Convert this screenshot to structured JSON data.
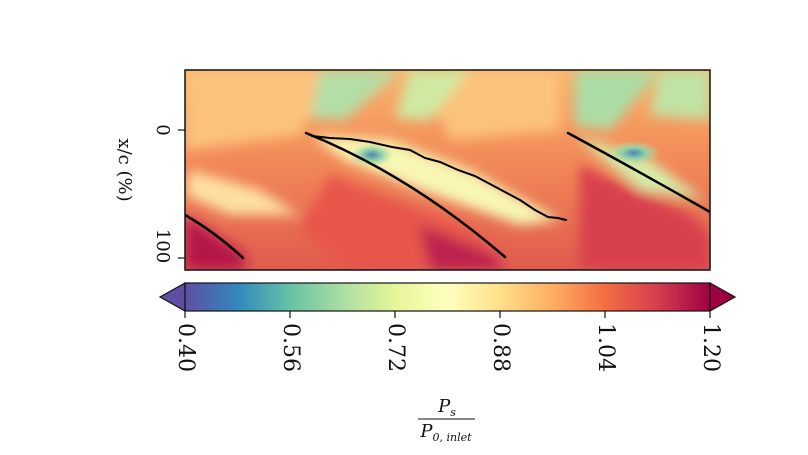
{
  "chart_data": {
    "type": "heatmap",
    "ylabel": "x/c (%)",
    "y_ticks": [
      "0",
      "100"
    ],
    "colorbar": {
      "ticks": [
        "0.40",
        "0.56",
        "0.72",
        "0.88",
        "1.04",
        "1.20"
      ],
      "range": [
        0.4,
        1.2
      ],
      "extend": "both",
      "colormap": "Spectral_r",
      "label": {
        "numerator_symbol": "P",
        "numerator_sub": "s",
        "denominator_symbol": "P",
        "denominator_sub": "0, inlet"
      }
    },
    "colors": {
      "low": "#5e4fa2",
      "mid": "#ffffbf",
      "high": "#9e0142",
      "frame": "#111111"
    }
  }
}
